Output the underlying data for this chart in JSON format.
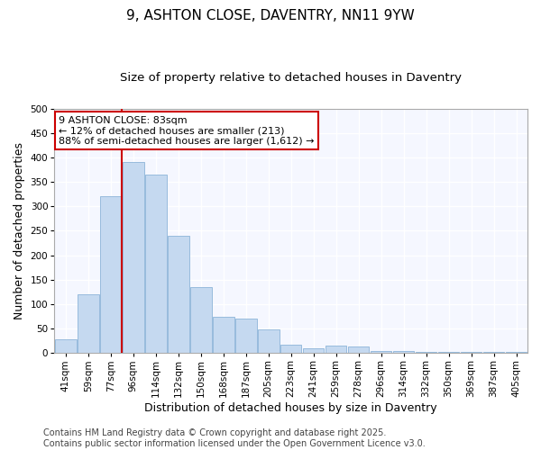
{
  "title": "9, ASHTON CLOSE, DAVENTRY, NN11 9YW",
  "subtitle": "Size of property relative to detached houses in Daventry",
  "xlabel": "Distribution of detached houses by size in Daventry",
  "ylabel": "Number of detached properties",
  "categories": [
    "41sqm",
    "59sqm",
    "77sqm",
    "96sqm",
    "114sqm",
    "132sqm",
    "150sqm",
    "168sqm",
    "187sqm",
    "205sqm",
    "223sqm",
    "241sqm",
    "259sqm",
    "278sqm",
    "296sqm",
    "314sqm",
    "332sqm",
    "350sqm",
    "369sqm",
    "387sqm",
    "405sqm"
  ],
  "values": [
    28,
    120,
    320,
    390,
    365,
    240,
    135,
    75,
    70,
    48,
    18,
    10,
    15,
    14,
    5,
    5,
    3,
    3,
    2,
    3,
    2
  ],
  "bar_color": "#c5d9f0",
  "bar_edge_color": "#8cb4d8",
  "vline_x_index": 2,
  "vline_color": "#cc0000",
  "ylim": [
    0,
    500
  ],
  "yticks": [
    0,
    50,
    100,
    150,
    200,
    250,
    300,
    350,
    400,
    450,
    500
  ],
  "annotation_text": "9 ASHTON CLOSE: 83sqm\n← 12% of detached houses are smaller (213)\n88% of semi-detached houses are larger (1,612) →",
  "annotation_box_facecolor": "#ffffff",
  "annotation_box_edge_color": "#cc0000",
  "footer_text": "Contains HM Land Registry data © Crown copyright and database right 2025.\nContains public sector information licensed under the Open Government Licence v3.0.",
  "background_color": "#ffffff",
  "plot_bg_color": "#f5f7ff",
  "title_fontsize": 11,
  "subtitle_fontsize": 9.5,
  "tick_fontsize": 7.5,
  "label_fontsize": 9,
  "footer_fontsize": 7,
  "annotation_fontsize": 8
}
